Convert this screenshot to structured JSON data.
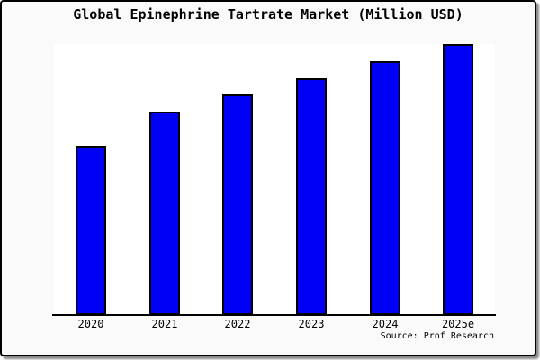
{
  "title": "Global Epinephrine Tartrate Market (Million USD)",
  "source": "Source: Prof Research",
  "colors": {
    "bar_fill": "#0000f5",
    "bar_border": "#000000",
    "figure_background": "#fafafa",
    "plot_background": "#ffffff",
    "frame_border": "#000000",
    "text": "#000000"
  },
  "chart_data": {
    "type": "bar",
    "categories": [
      "2020",
      "2021",
      "2022",
      "2023",
      "2024",
      "2025e"
    ],
    "values": [
      50,
      60,
      65,
      70,
      75,
      80
    ],
    "values_estimated": true,
    "title": "Global Epinephrine Tartrate Market (Million USD)",
    "xlabel": "",
    "ylabel": "",
    "ylim": [
      0,
      80
    ],
    "grid": false,
    "legend": false,
    "y_axis_visible": false,
    "annotations": [
      "Source: Prof Research"
    ]
  }
}
